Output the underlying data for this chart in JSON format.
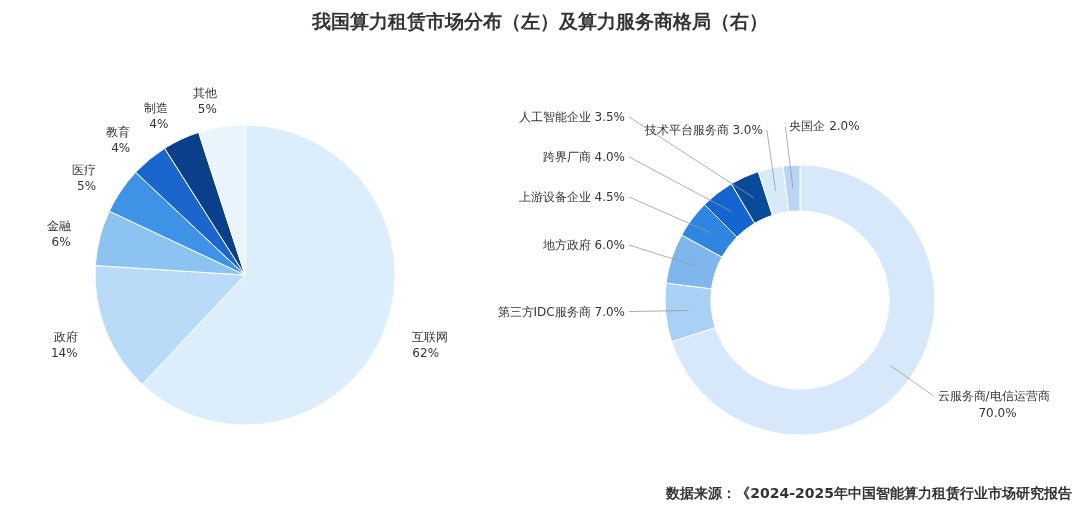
{
  "chart_data": [
    {
      "type": "pie",
      "title": "我国算力租赁市场分布（左）及算力服务商格局（右）",
      "categories": [
        "互联网",
        "政府",
        "金融",
        "医疗",
        "教育",
        "制造",
        "其他"
      ],
      "values": [
        62,
        14,
        6,
        5,
        4,
        4,
        5
      ],
      "value_labels": [
        "62%",
        "14%",
        "6%",
        "5%",
        "4%",
        "4%",
        "5%"
      ],
      "colors": [
        "#dcedfb",
        "#b9dbf7",
        "#8cc3f1",
        "#3f93e6",
        "#1b66cc",
        "#0b3f8a",
        "#eaf4fc"
      ]
    },
    {
      "type": "donut",
      "categories": [
        "云服务商/电信运营商",
        "第三方IDC服务商",
        "地方政府",
        "上游设备企业",
        "跨界厂商",
        "人工智能企业",
        "技术平台服务商",
        "央国企"
      ],
      "values": [
        70,
        7,
        6,
        4.5,
        4,
        3.5,
        3,
        2
      ],
      "value_labels": [
        "70.0%",
        "7.0%",
        "6.0%",
        "4.5%",
        "4.0%",
        "3.5%",
        "3.0%",
        "2.0%"
      ],
      "colors": [
        "#d6e8fa",
        "#a9d0f5",
        "#7fb6ee",
        "#2f86e0",
        "#1565d0",
        "#0a4a9a",
        "#d8e9f8",
        "#b8d6f4"
      ],
      "annotations": [
        "数据来源：《2024-2025年中国智能算力租赁行业市场研究报告"
      ]
    }
  ]
}
